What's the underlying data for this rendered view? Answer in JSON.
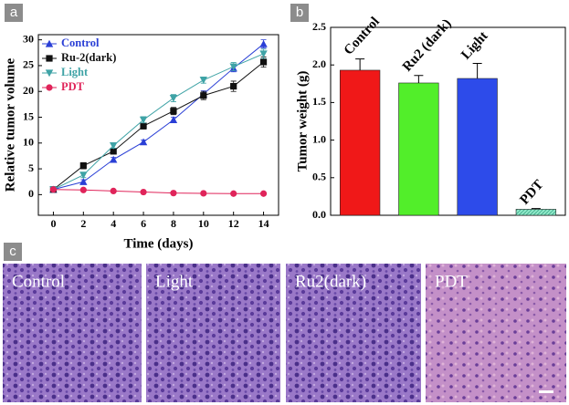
{
  "chart_data": [
    {
      "type": "line",
      "panel_label": "a",
      "xlabel": "Time (days)",
      "ylabel": "Relative tumor volume",
      "x": [
        0,
        2,
        4,
        6,
        8,
        10,
        12,
        14
      ],
      "xlim": [
        -1,
        15
      ],
      "xticks": [
        0,
        2,
        4,
        6,
        8,
        10,
        12,
        14
      ],
      "ylim": [
        -4,
        31
      ],
      "yticks": [
        0,
        5,
        10,
        15,
        20,
        25,
        30
      ],
      "legend": "upper left",
      "series": [
        {
          "name": "Control",
          "color": "#2a3fd6",
          "marker": "triangle-up",
          "values": [
            1,
            2.5,
            6.8,
            10.2,
            14.5,
            19.5,
            24.5,
            29.2
          ],
          "errors": [
            0.3,
            0.4,
            0.4,
            0.4,
            0.5,
            0.6,
            0.7,
            0.8
          ]
        },
        {
          "name": "Ru-2(dark)",
          "color": "#111111",
          "marker": "square",
          "values": [
            1,
            5.6,
            8.4,
            13.3,
            16.2,
            19.2,
            21,
            25.7
          ],
          "errors": [
            0.4,
            0.6,
            0.5,
            0.6,
            0.7,
            0.8,
            1.0,
            1.0
          ]
        },
        {
          "name": "Light",
          "color": "#3fa3a6",
          "marker": "triangle-down",
          "values": [
            1,
            3.8,
            9.5,
            14.5,
            18.7,
            22.2,
            24.8,
            27.3
          ],
          "errors": [
            0.4,
            0.5,
            0.5,
            0.6,
            0.7,
            0.6,
            0.8,
            0.9
          ]
        },
        {
          "name": "PDT",
          "color": "#e0245a",
          "marker": "circle",
          "values": [
            1,
            0.9,
            0.7,
            0.5,
            0.3,
            0.25,
            0.2,
            0.2
          ],
          "errors": [
            0.1,
            0.1,
            0.1,
            0.1,
            0.1,
            0.1,
            0.1,
            0.1
          ]
        }
      ]
    },
    {
      "type": "bar",
      "panel_label": "b",
      "ylabel": "Tumor weight (g)",
      "categories": [
        "Control",
        "Ru2 (dark)",
        "Light",
        "PDT"
      ],
      "values": [
        1.93,
        1.76,
        1.82,
        0.08
      ],
      "errors": [
        0.15,
        0.1,
        0.2,
        0.01
      ],
      "colors": [
        "#f01818",
        "#52ee2a",
        "#2d4bea",
        "#8fe8c8"
      ],
      "ylim": [
        0,
        2.5
      ],
      "yticks": [
        {
          "value": 0,
          "label": "0.0"
        },
        0.5,
        {
          "value": 1,
          "label": "1.0"
        },
        1.5,
        {
          "value": 2,
          "label": "2.0"
        },
        2.5
      ]
    }
  ],
  "panel_c": {
    "label": "c",
    "images": [
      "Control",
      "Light",
      "Ru2(dark)",
      "PDT"
    ]
  }
}
